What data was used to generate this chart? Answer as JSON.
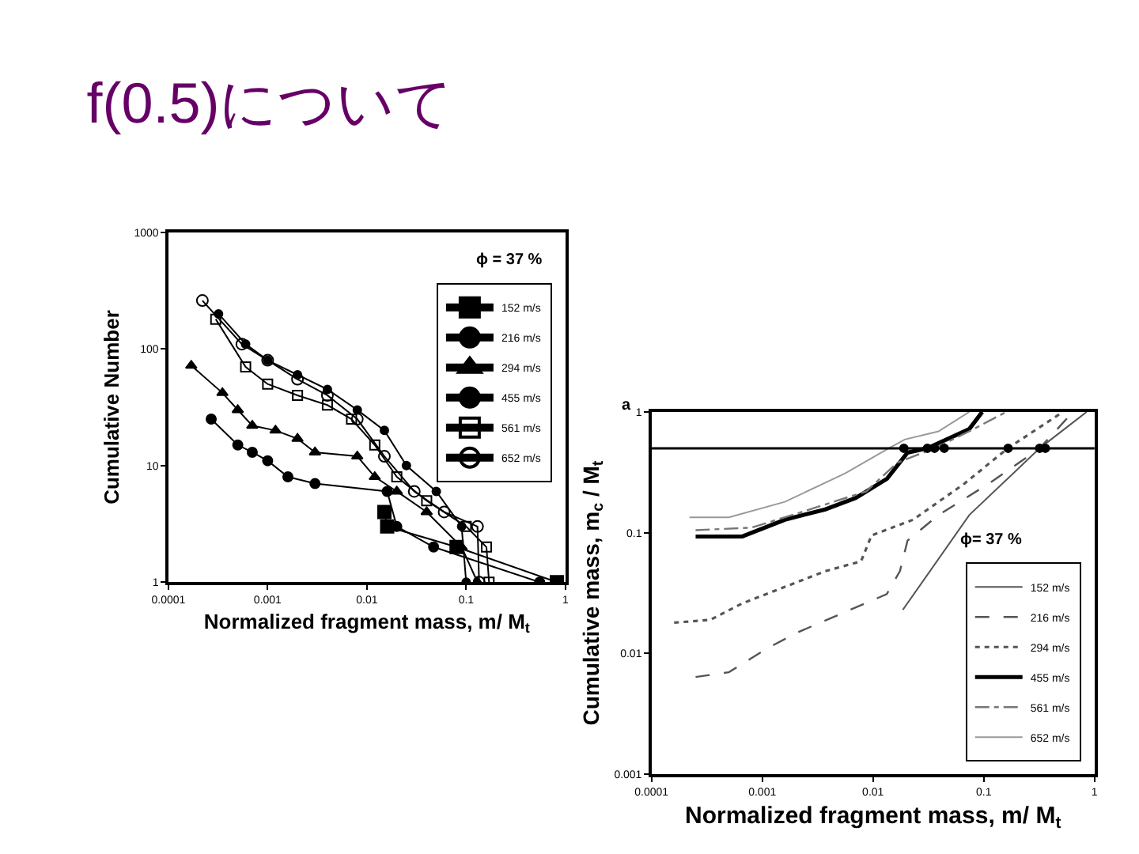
{
  "chart_data": [
    {
      "type": "line",
      "title": "f(0.5)について",
      "xlabel": "Normalized fragment mass, m/ M$_{t}$",
      "ylabel": "Cumulative Number",
      "log": "xy",
      "xlim": [
        0.0001,
        1
      ],
      "ylim": [
        1,
        1000
      ],
      "xticks": [
        0.0001,
        0.001,
        0.01,
        0.1,
        1
      ],
      "yticks": [
        1,
        10,
        100,
        1000
      ],
      "legend": "top right",
      "annotations": [
        "ϕ = 37 %"
      ],
      "series": [
        {
          "name": "152 m/s",
          "color": "#000000",
          "marker": "square",
          "x": [
            0.015,
            0.016,
            0.08,
            0.82
          ],
          "values": [
            4,
            3,
            2,
            1
          ]
        },
        {
          "name": "216 m/s",
          "color": "#000000",
          "marker": "circle",
          "x": [
            0.00027,
            0.0005,
            0.0007,
            0.001,
            0.0016,
            0.003,
            0.016,
            0.02,
            0.047,
            0.55
          ],
          "values": [
            25,
            15,
            13,
            11,
            8,
            7,
            6,
            3,
            2,
            1
          ]
        },
        {
          "name": "294 m/s",
          "color": "#000000",
          "marker": "triangle",
          "x": [
            0.00017,
            0.00035,
            0.0005,
            0.0007,
            0.0012,
            0.002,
            0.003,
            0.008,
            0.012,
            0.02,
            0.04,
            0.09,
            0.13
          ],
          "values": [
            72,
            42,
            30,
            22,
            20,
            17,
            13,
            12,
            8,
            6,
            4,
            2,
            1
          ]
        },
        {
          "name": "455 m/s",
          "color": "#000000",
          "marker": "circle",
          "x": [
            0.00032,
            0.0006,
            0.001,
            0.002,
            0.004,
            0.008,
            0.015,
            0.025,
            0.05,
            0.09,
            0.1
          ],
          "values": [
            200,
            110,
            80,
            60,
            45,
            30,
            20,
            10,
            6,
            3,
            1
          ]
        },
        {
          "name": "561 m/s",
          "color": "#000000",
          "marker": "square-open",
          "x": [
            0.0003,
            0.0006,
            0.001,
            0.002,
            0.004,
            0.007,
            0.012,
            0.02,
            0.04,
            0.1,
            0.16,
            0.17
          ],
          "values": [
            180,
            70,
            50,
            40,
            33,
            25,
            15,
            8,
            5,
            3,
            2,
            1
          ]
        },
        {
          "name": "652 m/s",
          "color": "#000000",
          "marker": "circle-open",
          "x": [
            0.00022,
            0.00055,
            0.001,
            0.002,
            0.004,
            0.008,
            0.015,
            0.03,
            0.06,
            0.13,
            0.135
          ],
          "values": [
            260,
            110,
            80,
            55,
            40,
            25,
            12,
            6,
            4,
            3,
            1
          ]
        }
      ]
    },
    {
      "type": "line",
      "xlabel": "Normalized fragment mass, m/ M$_{t}$",
      "ylabel": "Cumulative mass, m$_{c}$ / M$_{t}$",
      "log": "xy",
      "xlim": [
        0.0001,
        1
      ],
      "ylim": [
        0.001,
        1
      ],
      "xticks": [
        0.0001,
        0.001,
        0.01,
        0.1,
        1
      ],
      "yticks": [
        0.001,
        0.01,
        0.1,
        1
      ],
      "legend": "bottom right",
      "annotations": [
        "a",
        "ϕ= 37 %"
      ],
      "ref_lines": [
        {
          "axis": "y",
          "value": 0.5,
          "color": "#000000"
        }
      ],
      "series": [
        {
          "name": "152 m/s",
          "color": "#555555",
          "line_style": "solid",
          "x": [
            0.0186,
            0.074,
            0.32,
            0.85
          ],
          "values": [
            0.023,
            0.14,
            0.5,
            1
          ]
        },
        {
          "name": "216 m/s",
          "color": "#555555",
          "line_style": "dashed",
          "x": [
            0.00025,
            0.0005,
            0.0011,
            0.0021,
            0.0133,
            0.0175,
            0.0205,
            0.039,
            0.115,
            0.32,
            0.64
          ],
          "values": [
            0.0064,
            0.007,
            0.011,
            0.015,
            0.031,
            0.048,
            0.086,
            0.14,
            0.26,
            0.5,
            1
          ]
        },
        {
          "name": "294 m/s",
          "color": "#555555",
          "line_style": "dotted",
          "x": [
            0.00016,
            0.00034,
            0.00066,
            0.0037,
            0.0078,
            0.0097,
            0.023,
            0.067,
            0.165,
            0.52
          ],
          "values": [
            0.018,
            0.019,
            0.026,
            0.048,
            0.058,
            0.095,
            0.128,
            0.255,
            0.5,
            1
          ]
        },
        {
          "name": "455 m/s",
          "color": "#000000",
          "line_style": "solid",
          "x": [
            0.00025,
            0.00066,
            0.0016,
            0.0037,
            0.007,
            0.0134,
            0.0205,
            0.031,
            0.074,
            0.097
          ],
          "values": [
            0.093,
            0.093,
            0.128,
            0.156,
            0.194,
            0.28,
            0.46,
            0.5,
            0.72,
            1
          ]
        },
        {
          "name": "561 m/s",
          "color": "#777777",
          "line_style": "dashdot",
          "x": [
            0.00025,
            0.0008,
            0.0027,
            0.0087,
            0.0166,
            0.036,
            0.074,
            0.16
          ],
          "values": [
            0.105,
            0.11,
            0.156,
            0.22,
            0.38,
            0.5,
            0.69,
            1
          ]
        },
        {
          "name": "652 m/s",
          "color": "#999999",
          "line_style": "solid",
          "x": [
            0.00022,
            0.0005,
            0.0016,
            0.0056,
            0.0134,
            0.0193,
            0.039,
            0.074
          ],
          "values": [
            0.134,
            0.134,
            0.18,
            0.31,
            0.49,
            0.59,
            0.69,
            1
          ]
        },
        {
          "type": "scatter",
          "color": "#000000",
          "marker": "circle",
          "x": [
            0.019,
            0.031,
            0.036,
            0.044,
            0.166,
            0.32,
            0.36
          ],
          "values": [
            0.5,
            0.5,
            0.5,
            0.5,
            0.5,
            0.5,
            0.5
          ]
        }
      ]
    }
  ]
}
